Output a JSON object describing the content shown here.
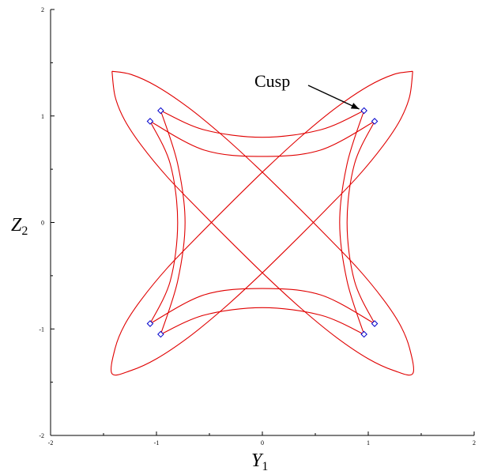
{
  "chart_data": {
    "type": "line",
    "xlim": [
      -2,
      2
    ],
    "ylim": [
      -2,
      2
    ],
    "x_ticks": [
      -2,
      -1,
      0,
      1,
      2
    ],
    "y_ticks": [
      -2,
      -1,
      0,
      1,
      2
    ],
    "x_tick_labels": [
      "-2",
      "-1",
      "0",
      "1",
      "2"
    ],
    "y_tick_labels": [
      "-2",
      "-1",
      "0",
      "1",
      "2"
    ],
    "xlabel": "Y",
    "xlabel_sub": "1",
    "ylabel": "Z",
    "ylabel_sub": "2",
    "grid": false,
    "curve_color": "#e00000",
    "marker_color": "#0000cc",
    "annotation": {
      "text": "Cusp",
      "points_to": [
        0.96,
        1.05
      ]
    },
    "series": [
      {
        "kind": "diagonal-ellipses",
        "points": [
          [
            1.42,
            1.42
          ],
          [
            1.24,
            1.39
          ],
          [
            1.0,
            1.28
          ],
          [
            0.7,
            1.08
          ],
          [
            0.38,
            0.82
          ],
          [
            0.05,
            0.52
          ],
          [
            -0.28,
            0.2
          ],
          [
            -0.6,
            -0.12
          ],
          [
            -0.9,
            -0.43
          ],
          [
            -1.14,
            -0.72
          ],
          [
            -1.3,
            -0.96
          ],
          [
            -1.39,
            -1.18
          ],
          [
            -1.42,
            -1.42
          ],
          [
            -1.24,
            -1.39
          ],
          [
            -1.0,
            -1.28
          ],
          [
            -0.7,
            -1.08
          ],
          [
            -0.38,
            -0.82
          ],
          [
            -0.05,
            -0.52
          ],
          [
            0.28,
            -0.2
          ],
          [
            0.6,
            0.12
          ],
          [
            0.9,
            0.43
          ],
          [
            1.14,
            0.72
          ],
          [
            1.3,
            0.96
          ],
          [
            1.39,
            1.18
          ],
          [
            1.42,
            1.42
          ]
        ]
      },
      {
        "kind": "diagonal-ellipses",
        "points": [
          [
            -1.42,
            1.42
          ],
          [
            -1.39,
            1.18
          ],
          [
            -1.3,
            0.96
          ],
          [
            -1.14,
            0.72
          ],
          [
            -0.9,
            0.43
          ],
          [
            -0.6,
            0.12
          ],
          [
            -0.28,
            -0.2
          ],
          [
            0.05,
            -0.52
          ],
          [
            0.38,
            -0.82
          ],
          [
            0.7,
            -1.08
          ],
          [
            1.0,
            -1.28
          ],
          [
            1.24,
            -1.39
          ],
          [
            1.42,
            -1.42
          ],
          [
            1.39,
            -1.18
          ],
          [
            1.3,
            -0.96
          ],
          [
            1.14,
            -0.72
          ],
          [
            0.9,
            -0.43
          ],
          [
            0.6,
            -0.12
          ],
          [
            0.28,
            0.2
          ],
          [
            -0.05,
            0.52
          ],
          [
            -0.38,
            0.82
          ],
          [
            -0.7,
            1.08
          ],
          [
            -1.0,
            1.28
          ],
          [
            -1.24,
            1.39
          ],
          [
            -1.42,
            1.42
          ]
        ]
      },
      {
        "kind": "inner-astroid",
        "points": [
          [
            -0.96,
            1.05
          ],
          [
            -0.55,
            0.87
          ],
          [
            0.0,
            0.8
          ],
          [
            0.55,
            0.87
          ],
          [
            0.96,
            1.05
          ],
          [
            0.8,
            0.55
          ],
          [
            0.73,
            0.0
          ],
          [
            0.8,
            -0.55
          ],
          [
            0.96,
            -1.05
          ],
          [
            0.55,
            -0.87
          ],
          [
            0.0,
            -0.8
          ],
          [
            -0.55,
            -0.87
          ],
          [
            -0.96,
            -1.05
          ],
          [
            -0.8,
            -0.55
          ],
          [
            -0.73,
            0.0
          ],
          [
            -0.8,
            0.55
          ],
          [
            -0.96,
            1.05
          ]
        ]
      },
      {
        "kind": "outer-astroid",
        "points": [
          [
            -1.06,
            0.95
          ],
          [
            -0.55,
            0.68
          ],
          [
            0.0,
            0.62
          ],
          [
            0.55,
            0.68
          ],
          [
            1.06,
            0.95
          ],
          [
            0.87,
            0.55
          ],
          [
            0.8,
            0.0
          ],
          [
            0.87,
            -0.55
          ],
          [
            1.06,
            -0.95
          ],
          [
            0.55,
            -0.68
          ],
          [
            0.0,
            -0.62
          ],
          [
            -0.55,
            -0.68
          ],
          [
            -1.06,
            -0.95
          ],
          [
            -0.87,
            -0.55
          ],
          [
            -0.8,
            0.0
          ],
          [
            -0.87,
            0.55
          ],
          [
            -1.06,
            0.95
          ]
        ]
      }
    ],
    "cusps": [
      [
        -0.96,
        1.05
      ],
      [
        -1.06,
        0.95
      ],
      [
        0.96,
        1.05
      ],
      [
        1.06,
        0.95
      ],
      [
        -0.96,
        -1.05
      ],
      [
        -1.06,
        -0.95
      ],
      [
        0.96,
        -1.05
      ],
      [
        1.06,
        -0.95
      ]
    ]
  }
}
